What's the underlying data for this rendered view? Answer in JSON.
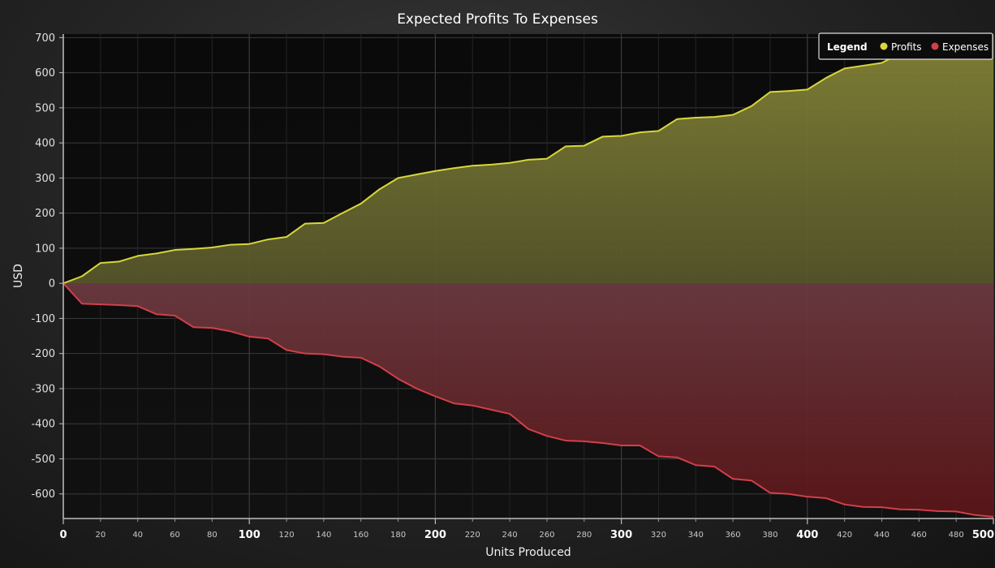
{
  "chart_data": {
    "type": "area",
    "title": "Expected Profits To Expenses",
    "xlabel": "Units Produced",
    "ylabel": "USD",
    "xlim": [
      0,
      500
    ],
    "ylim": [
      -670,
      710
    ],
    "grid": true,
    "legend": {
      "title": "Legend",
      "placement": "top-right"
    },
    "x_major_ticks": [
      "0",
      "100",
      "200",
      "300",
      "400",
      "500"
    ],
    "x_minor_ticks": [
      "20",
      "40",
      "60",
      "80",
      "120",
      "140",
      "160",
      "180",
      "220",
      "240",
      "260",
      "280",
      "320",
      "340",
      "360",
      "380",
      "420",
      "440",
      "460",
      "480"
    ],
    "y_ticks": [
      "700",
      "600",
      "500",
      "400",
      "300",
      "200",
      "100",
      "0",
      "-100",
      "-200",
      "-300",
      "-400",
      "-500",
      "-600"
    ],
    "x": [
      0,
      10,
      20,
      30,
      40,
      50,
      60,
      70,
      80,
      90,
      100,
      110,
      120,
      130,
      140,
      150,
      160,
      170,
      180,
      190,
      200,
      210,
      220,
      230,
      240,
      250,
      260,
      270,
      280,
      290,
      300,
      310,
      320,
      330,
      340,
      350,
      360,
      370,
      380,
      390,
      400,
      410,
      420,
      430,
      440,
      450,
      460,
      470,
      480,
      490,
      500
    ],
    "series": [
      {
        "name": "Profits",
        "color": "#d8d63c",
        "values": [
          0,
          20,
          58,
          62,
          78,
          85,
          95,
          98,
          102,
          110,
          112,
          125,
          132,
          170,
          172,
          200,
          227,
          268,
          300,
          310,
          320,
          328,
          335,
          338,
          343,
          352,
          355,
          390,
          392,
          418,
          420,
          430,
          434,
          468,
          472,
          474,
          480,
          505,
          545,
          548,
          552,
          585,
          612,
          620,
          628,
          655,
          670,
          685,
          700,
          715,
          730
        ]
      },
      {
        "name": "Expenses",
        "color": "#d23f4a",
        "values": [
          0,
          -58,
          -60,
          -62,
          -65,
          -88,
          -92,
          -125,
          -127,
          -137,
          -152,
          -157,
          -190,
          -200,
          -202,
          -209,
          -212,
          -237,
          -272,
          -300,
          -322,
          -342,
          -348,
          -360,
          -372,
          -415,
          -435,
          -448,
          -450,
          -455,
          -462,
          -462,
          -493,
          -496,
          -518,
          -522,
          -557,
          -562,
          -597,
          -600,
          -608,
          -612,
          -630,
          -637,
          -638,
          -644,
          -645,
          -649,
          -650,
          -660,
          -665
        ]
      }
    ]
  }
}
